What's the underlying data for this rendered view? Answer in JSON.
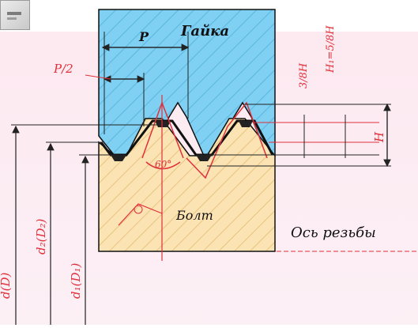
{
  "labels": {
    "nut": "Гайка",
    "bolt": "Болт",
    "pitch": "P",
    "half_pitch": "P/2",
    "thread_axis": "Ось резьбы",
    "angle": "60°",
    "height": "H",
    "h_38": "3/8H",
    "h1": "H₁=5/8H",
    "d_outer": "d(D)",
    "d2": "d₂(D₂)",
    "d1": "d₁(D₁)"
  },
  "colors": {
    "nut_fill": "#7fd0f2",
    "bolt_fill": "#fbe3b4",
    "background_pink": "#fde7ef",
    "accent_red": "#e0303a",
    "outline": "#111111"
  }
}
